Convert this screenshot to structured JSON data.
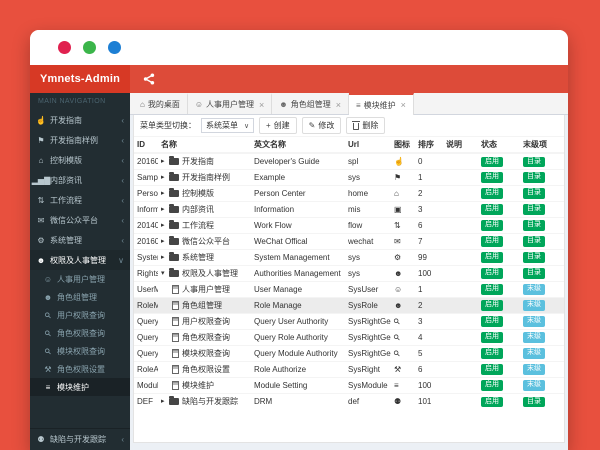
{
  "colors": {
    "frame": "#e8503e",
    "navbar": "#dd4b39",
    "brand_bg": "#d73925",
    "sidebar": "#222d32",
    "dot_red": "#e0214f",
    "dot_green": "#3bb54a",
    "dot_blue": "#1d7fd4",
    "badge_green": "#00a65a",
    "badge_blue": "#5bc0de",
    "tab_accent": "#dd4b39"
  },
  "header": {
    "brand": "Ymnets-Admin",
    "nav_icon": "share-alt-icon"
  },
  "sidebar": {
    "section": "MAIN NAVIGATION",
    "items": [
      {
        "label": "开发指南",
        "icon": "hand-pointer-icon"
      },
      {
        "label": "开发指南样例",
        "icon": "flag-icon"
      },
      {
        "label": "控制模版",
        "icon": "home-icon"
      },
      {
        "label": "内部资讯",
        "icon": "bar-chart-icon"
      },
      {
        "label": "工作流程",
        "icon": "workflow-icon"
      },
      {
        "label": "微信公众平台",
        "icon": "wechat-icon"
      },
      {
        "label": "系统管理",
        "icon": "gears-icon"
      },
      {
        "label": "权限及人事管理",
        "icon": "users-icon",
        "active": true,
        "open": true
      }
    ],
    "submenu": [
      {
        "label": "人事用户管理",
        "icon": "user-icon"
      },
      {
        "label": "角色组管理",
        "icon": "users-icon"
      },
      {
        "label": "用户权限查询",
        "icon": "search-icon"
      },
      {
        "label": "角色权限查询",
        "icon": "search-icon"
      },
      {
        "label": "模块权限查询",
        "icon": "search-icon"
      },
      {
        "label": "角色权限设置",
        "icon": "wrench-icon"
      },
      {
        "label": "模块维护",
        "icon": "list-icon",
        "active": true
      }
    ],
    "bottom_item": {
      "label": "缺陷与开发跟踪",
      "icon": "bug-icon"
    }
  },
  "tabs": [
    {
      "label": "我的桌面",
      "icon": "home-icon",
      "closable": false,
      "active": false
    },
    {
      "label": "人事用户管理",
      "icon": "user-icon",
      "closable": true,
      "active": false
    },
    {
      "label": "角色组管理",
      "icon": "users-icon",
      "closable": true,
      "active": false
    },
    {
      "label": "模块维护",
      "icon": "list-icon",
      "closable": true,
      "active": true
    }
  ],
  "toolbar": {
    "menu_type_label": "菜单类型切换：",
    "menu_type_value": "系统菜单",
    "create_label": "创建",
    "edit_label": "修改",
    "delete_label": "删除"
  },
  "table": {
    "columns": [
      "ID",
      "名称",
      "英文名称",
      "Url",
      "图标",
      "排序",
      "说明",
      "状态",
      "末级项"
    ],
    "badges": {
      "enabled": "启用",
      "directory": "目录",
      "leaf": "末级"
    },
    "rows": [
      {
        "id": "20160",
        "name": "开发指南",
        "en": "Developer's Guide",
        "url": "spl",
        "icon": "hand-pointer-icon",
        "sort": "0",
        "desc": "",
        "kind": "folder",
        "caret": "right"
      },
      {
        "id": "Sampl",
        "name": "开发指南样例",
        "en": "Example",
        "url": "sys",
        "icon": "flag-icon",
        "sort": "1",
        "desc": "",
        "kind": "folder",
        "caret": "right"
      },
      {
        "id": "Person",
        "name": "控制模版",
        "en": "Person Center",
        "url": "home",
        "icon": "home-icon",
        "sort": "2",
        "desc": "",
        "kind": "folder",
        "caret": "right"
      },
      {
        "id": "Inform",
        "name": "内部资讯",
        "en": "Information",
        "url": "mis",
        "icon": "tv-icon",
        "sort": "3",
        "desc": "",
        "kind": "folder",
        "caret": "right"
      },
      {
        "id": "20140",
        "name": "工作流程",
        "en": "Work Flow",
        "url": "flow",
        "icon": "workflow-icon",
        "sort": "6",
        "desc": "",
        "kind": "folder",
        "caret": "right"
      },
      {
        "id": "20160",
        "name": "微信公众平台",
        "en": "WeChat Offical",
        "url": "wechat",
        "icon": "wechat-icon",
        "sort": "7",
        "desc": "",
        "kind": "folder",
        "caret": "right"
      },
      {
        "id": "System",
        "name": "系统管理",
        "en": "System Management",
        "url": "sys",
        "icon": "gears-icon",
        "sort": "99",
        "desc": "",
        "kind": "folder",
        "caret": "right"
      },
      {
        "id": "Rights",
        "name": "权限及人事管理",
        "en": "Authorities Management",
        "url": "sys",
        "icon": "users-icon",
        "sort": "100",
        "desc": "",
        "kind": "folder",
        "caret": "down"
      },
      {
        "id": "UserM",
        "name": "人事用户管理",
        "en": "User Manage",
        "url": "SysUser",
        "icon": "user-icon",
        "sort": "1",
        "desc": "",
        "kind": "leaf"
      },
      {
        "id": "RoleM",
        "name": "角色组管理",
        "en": "Role Manage",
        "url": "SysRole",
        "icon": "users-icon",
        "sort": "2",
        "desc": "",
        "kind": "leaf",
        "selected": true
      },
      {
        "id": "QueryU",
        "name": "用户权限查询",
        "en": "Query User Authority",
        "url": "SysRightGe",
        "icon": "search-icon",
        "sort": "3",
        "desc": "",
        "kind": "leaf"
      },
      {
        "id": "QueryR",
        "name": "角色权限查询",
        "en": "Query Role Authority",
        "url": "SysRightGe",
        "icon": "search-icon",
        "sort": "4",
        "desc": "",
        "kind": "leaf"
      },
      {
        "id": "QueryM",
        "name": "模块权限查询",
        "en": "Query Module Authority",
        "url": "SysRightGe",
        "icon": "search-icon",
        "sort": "5",
        "desc": "",
        "kind": "leaf"
      },
      {
        "id": "RoleAu",
        "name": "角色权限设置",
        "en": "Role Authorize",
        "url": "SysRight",
        "icon": "wrench-icon",
        "sort": "6",
        "desc": "",
        "kind": "leaf"
      },
      {
        "id": "Modul",
        "name": "模块维护",
        "en": "Module Setting",
        "url": "SysModule",
        "icon": "list-icon",
        "sort": "100",
        "desc": "",
        "kind": "leaf"
      },
      {
        "id": "DEF",
        "name": "缺陷与开发跟踪",
        "en": "DRM",
        "url": "def",
        "icon": "bug-icon",
        "sort": "101",
        "desc": "",
        "kind": "folder",
        "caret": "right"
      }
    ]
  }
}
